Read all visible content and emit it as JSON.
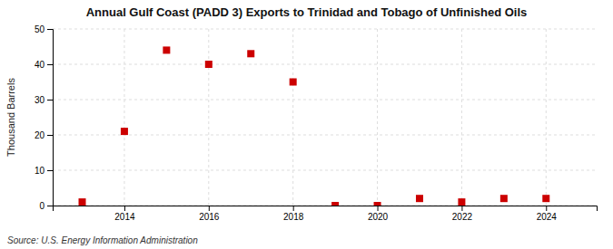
{
  "chart_data": {
    "type": "scatter",
    "title": "Annual Gulf Coast (PADD 3) Exports to Trinidad and Tobago of Unfinished Oils",
    "ylabel": "Thousand Barrels",
    "source": "Source: U.S. Energy Information Administration",
    "x": [
      2013,
      2014,
      2015,
      2016,
      2017,
      2018,
      2019,
      2020,
      2021,
      2022,
      2023,
      2024
    ],
    "values": [
      1,
      21,
      44,
      40,
      43,
      35,
      0,
      0,
      2,
      1,
      2,
      2
    ],
    "color": "#cc0000",
    "marker": "square",
    "xlim": [
      2012.3,
      2025.2
    ],
    "xticks": [
      2014,
      2016,
      2018,
      2020,
      2022,
      2024
    ],
    "ylim": [
      0,
      50
    ],
    "yticks": [
      0,
      10,
      20,
      30,
      40,
      50
    ],
    "grid": true
  }
}
